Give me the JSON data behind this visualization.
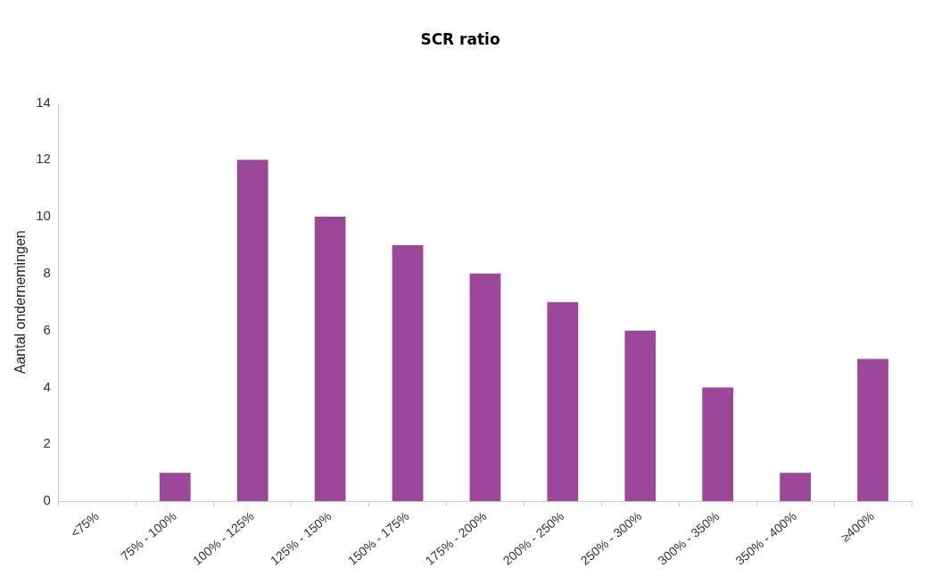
{
  "chart_data": {
    "type": "bar",
    "title": "SCR ratio",
    "ylabel": "Aantal ondernemingen",
    "categories": [
      "<75%",
      "75% - 100%",
      "100% - 125%",
      "125% - 150%",
      "150% - 175%",
      "175% - 200%",
      "200% - 250%",
      "250% - 300%",
      "300% - 350%",
      "350% - 400%",
      "≥400%"
    ],
    "values": [
      0,
      1,
      12,
      10,
      9,
      8,
      7,
      6,
      4,
      1,
      5
    ],
    "color": "#9b479a",
    "ylim": [
      0,
      14
    ],
    "yticks": [
      0,
      2,
      4,
      6,
      8,
      10,
      12,
      14
    ],
    "grid": false,
    "legend": false
  }
}
